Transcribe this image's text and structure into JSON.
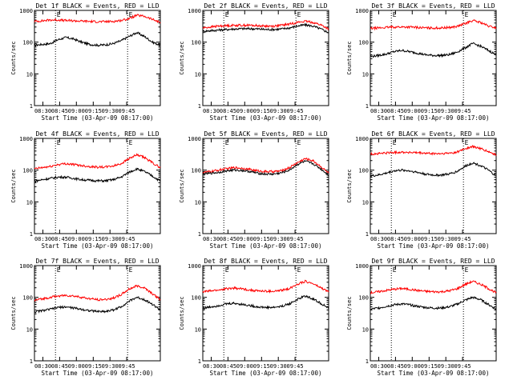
{
  "chart_data": [
    {
      "type": "line",
      "title": "Det 1f BLACK = Events, RED = LLD",
      "xlabel": "Start Time (03-Apr-09 08:17:00)",
      "ylabel": "Counts/sec",
      "yscale": "log",
      "ylim": [
        1,
        1000
      ],
      "xticks": [
        "08:30",
        "08:45",
        "09:00",
        "09:15",
        "09:30",
        "09:45"
      ],
      "yticks": [
        "1",
        "10",
        "100",
        "1000"
      ],
      "markers": [
        "E",
        "E"
      ],
      "series": [
        {
          "color": "#000000",
          "values": [
            80,
            85,
            90,
            120,
            140,
            125,
            100,
            85,
            80,
            82,
            90,
            110,
            150,
            200,
            150,
            100,
            80
          ]
        },
        {
          "color": "#ff0000",
          "values": [
            450,
            470,
            500,
            500,
            480,
            470,
            460,
            450,
            440,
            440,
            450,
            480,
            550,
            700,
            650,
            520,
            420
          ]
        }
      ]
    },
    {
      "type": "line",
      "title": "Det 2f BLACK = Events, RED = LLD",
      "xlabel": "Start Time (03-Apr-09 08:17:00)",
      "ylabel": "Counts/sec",
      "yscale": "log",
      "ylim": [
        1,
        1000
      ],
      "xticks": [
        "08:30",
        "08:45",
        "09:00",
        "09:15",
        "09:30",
        "09:45"
      ],
      "yticks": [
        "1",
        "10",
        "100",
        "1000"
      ],
      "markers": [
        "E",
        "E"
      ],
      "series": [
        {
          "color": "#000000",
          "values": [
            220,
            230,
            240,
            250,
            260,
            265,
            265,
            260,
            250,
            250,
            260,
            280,
            320,
            350,
            320,
            260,
            200
          ]
        },
        {
          "color": "#ff0000",
          "values": [
            280,
            300,
            320,
            330,
            340,
            340,
            340,
            330,
            320,
            320,
            340,
            370,
            420,
            450,
            420,
            350,
            260
          ]
        }
      ]
    },
    {
      "type": "line",
      "title": "Det 3f BLACK = Events, RED = LLD",
      "xlabel": "Start Time (03-Apr-09 08:17:00)",
      "ylabel": "Counts/sec",
      "yscale": "log",
      "ylim": [
        1,
        1000
      ],
      "xticks": [
        "08:30",
        "08:45",
        "09:00",
        "09:15",
        "09:30",
        "09:45"
      ],
      "yticks": [
        "1",
        "10",
        "100",
        "1000"
      ],
      "markers": [
        "E",
        "E"
      ],
      "series": [
        {
          "color": "#000000",
          "values": [
            35,
            38,
            42,
            50,
            55,
            50,
            45,
            40,
            38,
            38,
            40,
            48,
            65,
            90,
            75,
            55,
            40
          ]
        },
        {
          "color": "#ff0000",
          "values": [
            270,
            280,
            290,
            300,
            300,
            300,
            290,
            280,
            280,
            280,
            290,
            310,
            380,
            480,
            420,
            320,
            280
          ]
        }
      ]
    },
    {
      "type": "line",
      "title": "Det 4f BLACK = Events, RED = LLD",
      "xlabel": "Start Time (03-Apr-09 08:17:00)",
      "ylabel": "Counts/sec",
      "yscale": "log",
      "ylim": [
        1,
        1000
      ],
      "xticks": [
        "08:30",
        "08:45",
        "09:00",
        "09:15",
        "09:30",
        "09:45"
      ],
      "yticks": [
        "1",
        "10",
        "100",
        "1000"
      ],
      "markers": [
        "E",
        "E"
      ],
      "series": [
        {
          "color": "#000000",
          "values": [
            45,
            50,
            55,
            60,
            60,
            55,
            50,
            48,
            46,
            46,
            50,
            60,
            85,
            110,
            90,
            65,
            45
          ]
        },
        {
          "color": "#ff0000",
          "values": [
            110,
            120,
            130,
            150,
            160,
            150,
            140,
            130,
            125,
            125,
            135,
            160,
            230,
            300,
            250,
            170,
            120
          ]
        }
      ]
    },
    {
      "type": "line",
      "title": "Det 5f BLACK = Events, RED = LLD",
      "xlabel": "Start Time (03-Apr-09 08:17:00)",
      "ylabel": "Counts/sec",
      "yscale": "log",
      "ylim": [
        1,
        1000
      ],
      "xticks": [
        "08:30",
        "08:45",
        "09:00",
        "09:15",
        "09:30",
        "09:45"
      ],
      "yticks": [
        "1",
        "10",
        "100",
        "1000"
      ],
      "markers": [
        "E",
        "E"
      ],
      "series": [
        {
          "color": "#000000",
          "values": [
            75,
            80,
            85,
            95,
            100,
            98,
            90,
            80,
            75,
            75,
            82,
            100,
            150,
            190,
            160,
            110,
            70
          ]
        },
        {
          "color": "#ff0000",
          "values": [
            85,
            90,
            100,
            110,
            120,
            115,
            105,
            95,
            90,
            90,
            95,
            120,
            170,
            230,
            200,
            130,
            80
          ]
        }
      ]
    },
    {
      "type": "line",
      "title": "Det 6f BLACK = Events, RED = LLD",
      "xlabel": "Start Time (03-Apr-09 08:17:00)",
      "ylabel": "Counts/sec",
      "yscale": "log",
      "ylim": [
        1,
        1000
      ],
      "xticks": [
        "08:30",
        "08:45",
        "09:00",
        "09:15",
        "09:30",
        "09:45"
      ],
      "yticks": [
        "1",
        "10",
        "100",
        "1000"
      ],
      "markers": [
        "E",
        "E"
      ],
      "series": [
        {
          "color": "#000000",
          "values": [
            65,
            70,
            80,
            95,
            100,
            95,
            85,
            75,
            70,
            70,
            75,
            90,
            130,
            170,
            140,
            100,
            65
          ]
        },
        {
          "color": "#ff0000",
          "values": [
            320,
            330,
            350,
            360,
            370,
            360,
            350,
            340,
            330,
            330,
            340,
            370,
            470,
            550,
            480,
            380,
            300
          ]
        }
      ]
    },
    {
      "type": "line",
      "title": "Det 7f BLACK = Events, RED = LLD",
      "xlabel": "Start Time (03-Apr-09 08:17:00)",
      "ylabel": "Counts/sec",
      "yscale": "log",
      "ylim": [
        1,
        1000
      ],
      "xticks": [
        "08:30",
        "08:45",
        "09:00",
        "09:15",
        "09:30",
        "09:45"
      ],
      "yticks": [
        "1",
        "10",
        "100",
        "1000"
      ],
      "markers": [
        "E",
        "E"
      ],
      "series": [
        {
          "color": "#000000",
          "values": [
            35,
            38,
            42,
            48,
            50,
            46,
            42,
            38,
            36,
            36,
            40,
            50,
            75,
            100,
            85,
            60,
            40
          ]
        },
        {
          "color": "#ff0000",
          "values": [
            80,
            90,
            100,
            110,
            115,
            110,
            100,
            90,
            85,
            85,
            95,
            120,
            180,
            230,
            200,
            130,
            85
          ]
        }
      ]
    },
    {
      "type": "line",
      "title": "Det 8f BLACK = Events, RED = LLD",
      "xlabel": "Start Time (03-Apr-09 08:17:00)",
      "ylabel": "Counts/sec",
      "yscale": "log",
      "ylim": [
        1,
        1000
      ],
      "xticks": [
        "08:30",
        "08:45",
        "09:00",
        "09:15",
        "09:30",
        "09:45"
      ],
      "yticks": [
        "1",
        "10",
        "100",
        "1000"
      ],
      "markers": [
        "E",
        "E"
      ],
      "series": [
        {
          "color": "#000000",
          "values": [
            45,
            50,
            55,
            62,
            65,
            60,
            55,
            50,
            48,
            48,
            52,
            62,
            85,
            110,
            90,
            65,
            45
          ]
        },
        {
          "color": "#ff0000",
          "values": [
            150,
            160,
            170,
            185,
            195,
            185,
            170,
            160,
            155,
            155,
            165,
            190,
            260,
            320,
            270,
            200,
            150
          ]
        }
      ]
    },
    {
      "type": "line",
      "title": "Det 9f BLACK = Events, RED = LLD",
      "xlabel": "Start Time (03-Apr-09 08:17:00)",
      "ylabel": "Counts/sec",
      "yscale": "log",
      "ylim": [
        1,
        1000
      ],
      "xticks": [
        "08:30",
        "08:45",
        "09:00",
        "09:15",
        "09:30",
        "09:45"
      ],
      "yticks": [
        "1",
        "10",
        "100",
        "1000"
      ],
      "markers": [
        "E",
        "E"
      ],
      "series": [
        {
          "color": "#000000",
          "values": [
            42,
            46,
            52,
            58,
            62,
            58,
            52,
            48,
            46,
            46,
            50,
            60,
            80,
            100,
            85,
            60,
            42
          ]
        },
        {
          "color": "#ff0000",
          "values": [
            140,
            150,
            165,
            180,
            190,
            180,
            165,
            155,
            150,
            150,
            160,
            185,
            250,
            320,
            260,
            190,
            140
          ]
        }
      ]
    }
  ]
}
